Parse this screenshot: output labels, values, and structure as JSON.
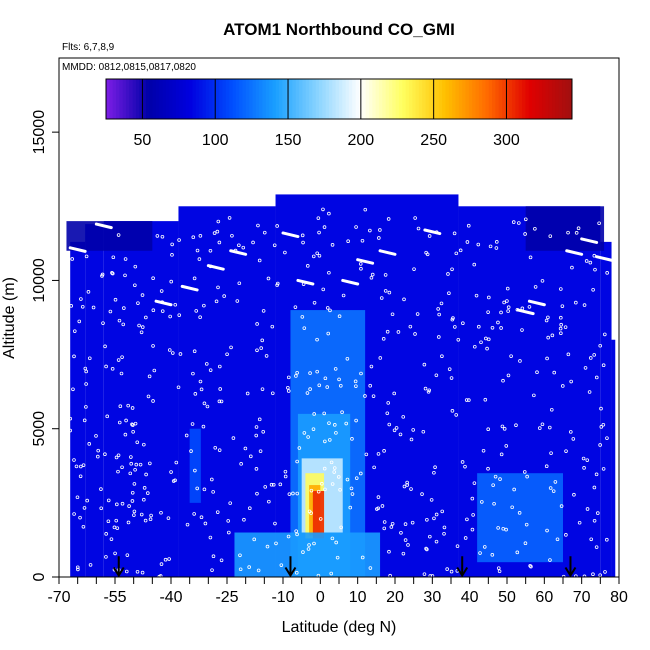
{
  "chart_data": {
    "type": "heatmap",
    "title": "ATOM1 Northbound CO_GMI",
    "annotations": [
      "Flts: 6,7,8,9",
      "MMDD: 0812,0815,0817,0820"
    ],
    "xlabel": "Latitude (deg N)",
    "ylabel": "Altitude (m)",
    "xlim": [
      -70,
      80
    ],
    "ylim": [
      0,
      17500
    ],
    "xticks": [
      -70,
      -55,
      -40,
      -25,
      -10,
      0,
      10,
      20,
      30,
      40,
      50,
      60,
      70,
      80
    ],
    "xtick_labels": [
      "-70",
      "-55",
      "-40",
      "-25",
      "-10",
      "0",
      "10",
      "20",
      "30",
      "40",
      "50",
      "60",
      "70",
      "80"
    ],
    "yticks": [
      0,
      5000,
      10000,
      15000
    ],
    "ytick_labels": [
      "0",
      "5000",
      "10000",
      "15000"
    ],
    "colorbar": {
      "range": [
        25,
        345
      ],
      "ticks": [
        50,
        100,
        150,
        200,
        250,
        300
      ],
      "tick_labels": [
        "50",
        "100",
        "150",
        "200",
        "250",
        "300"
      ],
      "colors": [
        "#7e1ee6",
        "#0000a8",
        "#0000e0",
        "#0050ff",
        "#1aa0ff",
        "#8ad4ff",
        "#ffffff",
        "#ffff60",
        "#ffc000",
        "#ff6a00",
        "#e00000",
        "#a01010"
      ]
    },
    "field": {
      "background_value": 85,
      "extent": [
        {
          "x": [
            -67,
            -63
          ],
          "y": [
            0,
            11300
          ]
        },
        {
          "x": [
            -63,
            -58
          ],
          "y": [
            0,
            11900
          ]
        },
        {
          "x": [
            -58,
            -38
          ],
          "y": [
            0,
            12000
          ]
        },
        {
          "x": [
            -38,
            -12
          ],
          "y": [
            0,
            12500
          ]
        },
        {
          "x": [
            -12,
            37
          ],
          "y": [
            0,
            12900
          ]
        },
        {
          "x": [
            37,
            75
          ],
          "y": [
            0,
            12500
          ]
        },
        {
          "x": [
            75,
            78
          ],
          "y": [
            0,
            11300
          ]
        },
        {
          "x": [
            78,
            79
          ],
          "y": [
            0,
            8000
          ]
        }
      ],
      "features": [
        {
          "name": "upper-violet-west",
          "x": [
            -68,
            -45
          ],
          "y": [
            11000,
            12000
          ],
          "value": 55
        },
        {
          "name": "upper-violet-east",
          "x": [
            55,
            76
          ],
          "y": [
            11000,
            12500
          ],
          "value": 55
        },
        {
          "name": "tropical-column",
          "x": [
            -8,
            12
          ],
          "y": [
            0,
            9000
          ],
          "value": 125
        },
        {
          "name": "column-mid",
          "x": [
            -6,
            8
          ],
          "y": [
            0,
            5500
          ],
          "value": 140
        },
        {
          "name": "column-low-light",
          "x": [
            -5,
            6
          ],
          "y": [
            1500,
            4000
          ],
          "value": 185
        },
        {
          "name": "column-core-yellow",
          "x": [
            -4,
            1
          ],
          "y": [
            1300,
            3500
          ],
          "value": 230
        },
        {
          "name": "column-core-orange",
          "x": [
            -3,
            0
          ],
          "y": [
            1400,
            3100
          ],
          "value": 265
        },
        {
          "name": "column-core-red",
          "x": [
            -2,
            1
          ],
          "y": [
            1300,
            2900
          ],
          "value": 305
        },
        {
          "name": "low-band",
          "x": [
            -23,
            16
          ],
          "y": [
            0,
            1500
          ],
          "value": 140
        },
        {
          "name": "northern-low-patch",
          "x": [
            42,
            65
          ],
          "y": [
            500,
            3500
          ],
          "value": 120
        },
        {
          "name": "southern-west-patch",
          "x": [
            -35,
            -32
          ],
          "y": [
            2500,
            5000
          ],
          "value": 110
        }
      ],
      "markers_arrow_lat": [
        -54,
        -8,
        38,
        67
      ]
    }
  }
}
